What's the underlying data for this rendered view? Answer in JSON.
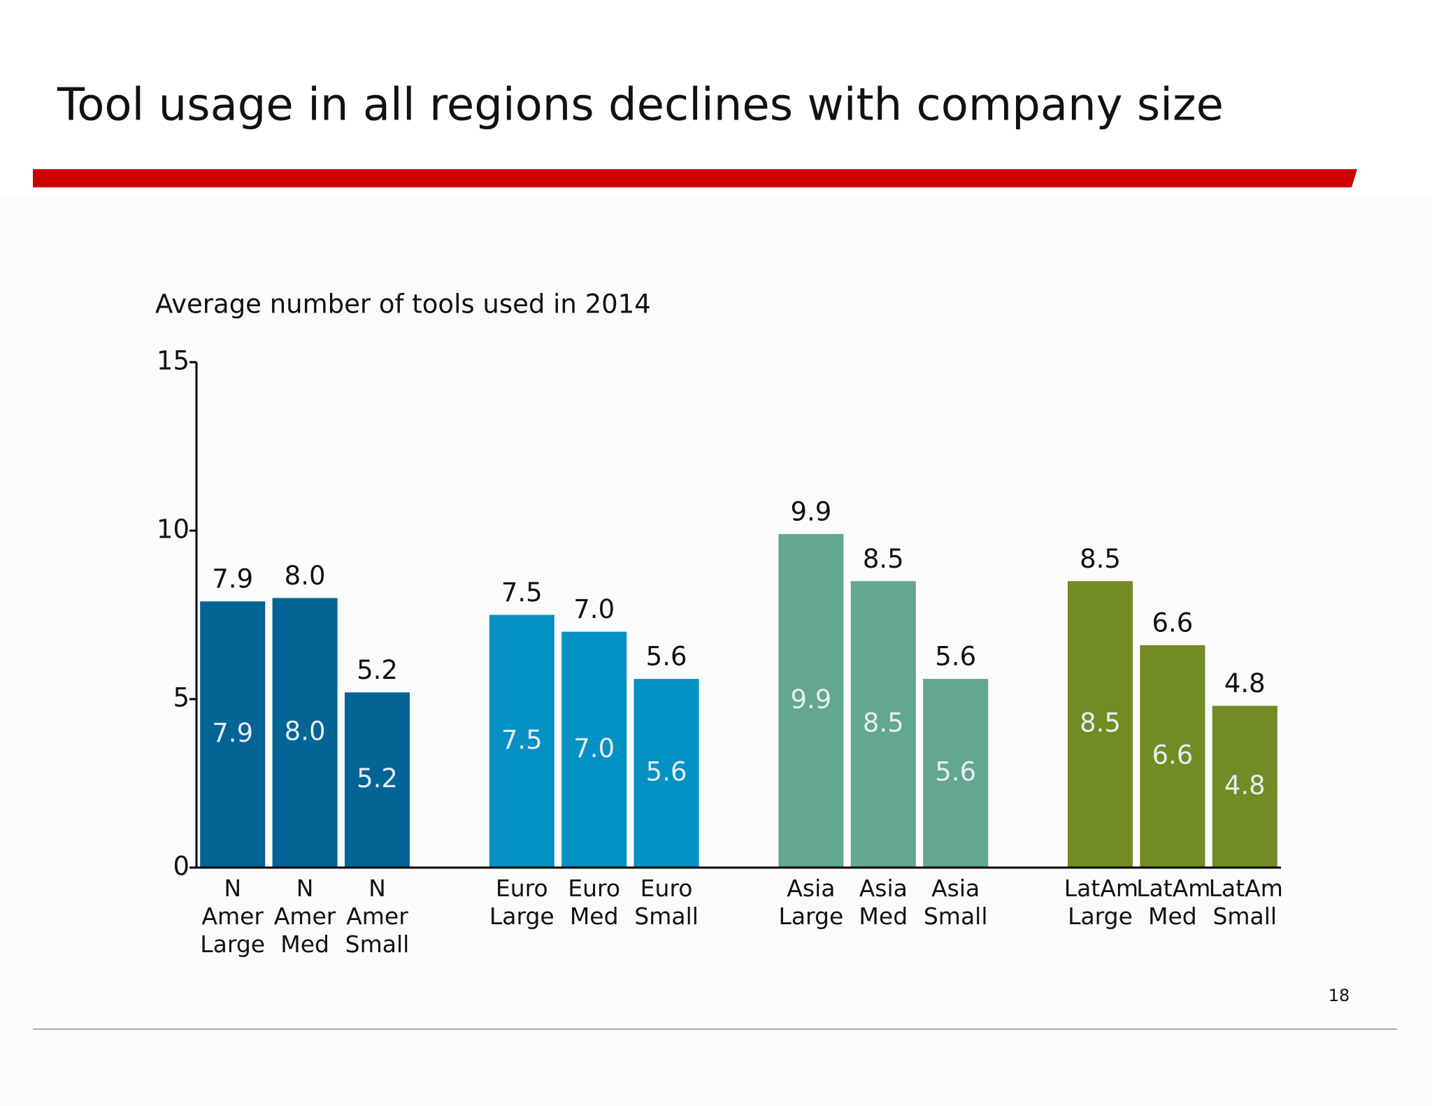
{
  "title": "Tool usage in all regions declines with company size",
  "page_number": 18,
  "chart_data": {
    "type": "bar",
    "subtitle": "Average number of tools used in 2014",
    "categories": [
      "N Amer Large",
      "N Amer Med",
      "N Amer Small",
      null,
      "Euro Large",
      "Euro Med",
      "Euro Small",
      null,
      "Asia Large",
      "Asia Med",
      "Asia Small",
      null,
      "LatAm Large",
      "LatAm Med",
      "LatAm Small"
    ],
    "values": [
      7.9,
      8.0,
      5.2,
      null,
      7.5,
      7.0,
      5.6,
      null,
      9.9,
      8.5,
      5.6,
      null,
      8.5,
      6.6,
      4.8
    ],
    "value_labels": [
      "7.9",
      "8.0",
      "5.2",
      null,
      "7.5",
      "7.0",
      "5.6",
      null,
      "9.9",
      "8.5",
      "5.6",
      null,
      "8.5",
      "6.6",
      "4.8"
    ],
    "colors": [
      "#036496",
      "#036496",
      "#036496",
      null,
      "#0591c3",
      "#0591c3",
      "#0591c3",
      null,
      "#62a78f",
      "#62a78f",
      "#62a78f",
      null,
      "#728b24",
      "#728b24",
      "#728b24"
    ],
    "ylim": [
      0,
      15
    ],
    "yticks": [
      0,
      5,
      10,
      15
    ],
    "grid": false
  }
}
